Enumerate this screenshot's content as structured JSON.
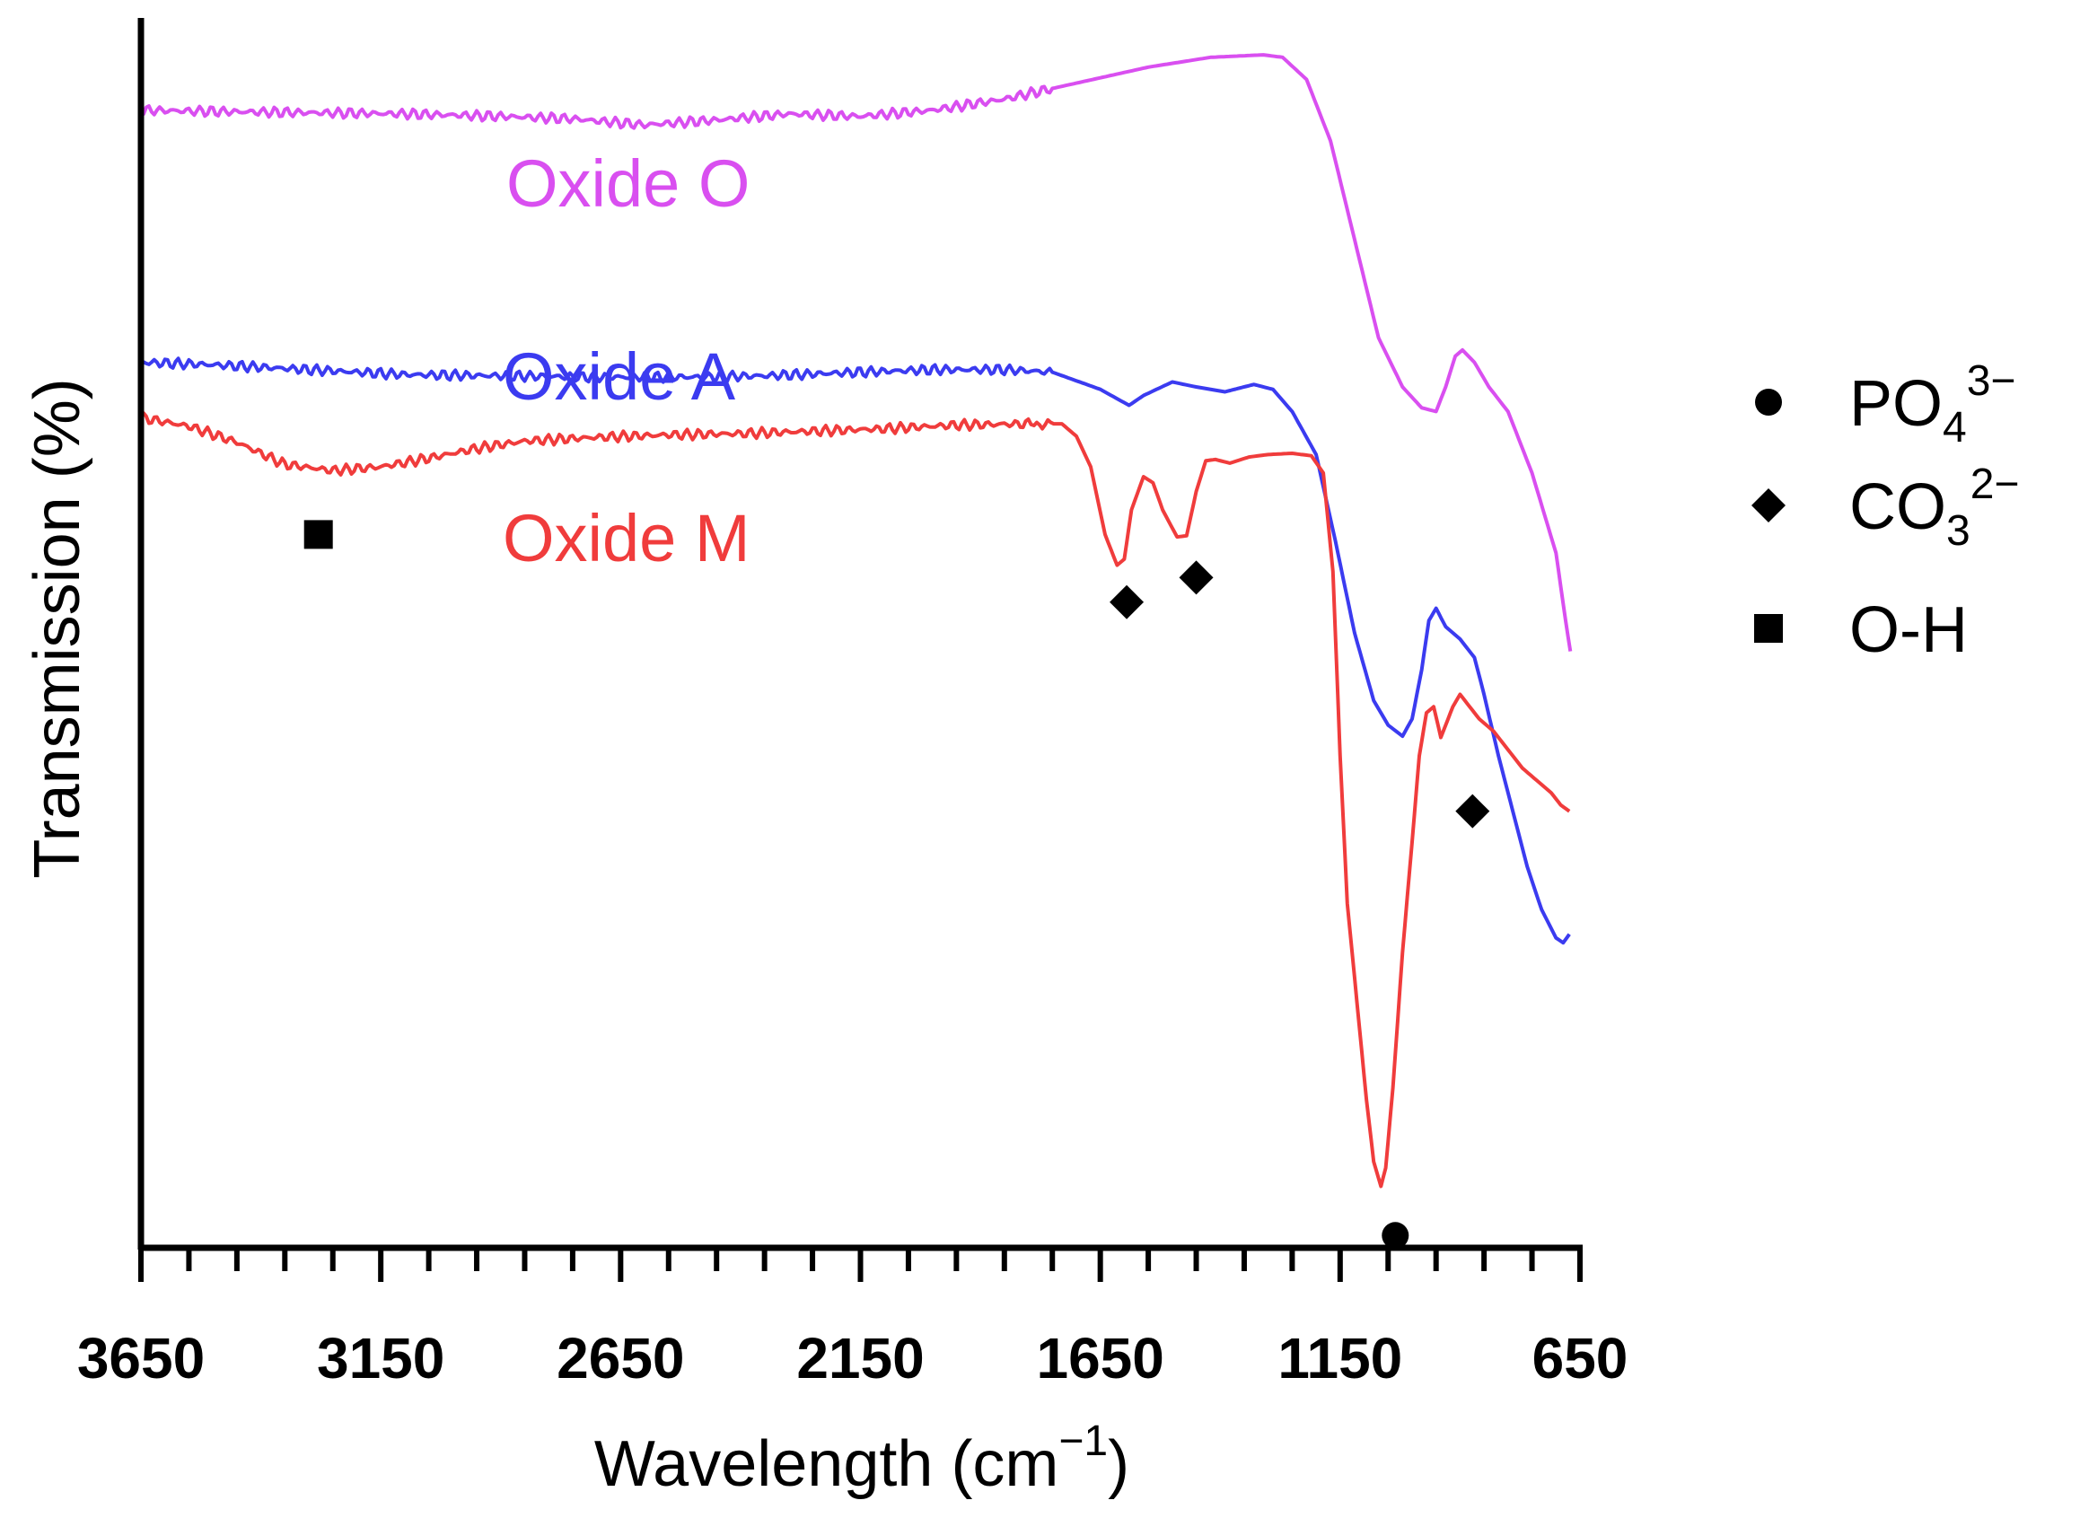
{
  "chart_data": {
    "type": "line",
    "xlabel": "Wavelength (cm",
    "xlabel_sup": "−1",
    "xlabel_tail": ")",
    "ylabel": "Transmission (%)",
    "x_reversed": true,
    "xlim": [
      3650,
      650
    ],
    "ylim": [
      0,
      100
    ],
    "x_ticks": [
      3650,
      3150,
      2650,
      2150,
      1650,
      1150,
      650
    ],
    "x_minor_step": 100,
    "y_ticks_shown": false,
    "series": [
      {
        "name": "Oxide O",
        "color": "#d94ff0",
        "points": [
          [
            3650,
            92.5
          ],
          [
            3500,
            92.4
          ],
          [
            3300,
            92.3
          ],
          [
            3100,
            92.2
          ],
          [
            2900,
            92.0
          ],
          [
            2750,
            91.8
          ],
          [
            2600,
            91.3
          ],
          [
            2450,
            91.7
          ],
          [
            2300,
            92.2
          ],
          [
            2150,
            92.0
          ],
          [
            2000,
            92.5
          ],
          [
            1850,
            93.4
          ],
          [
            1700,
            94.7
          ],
          [
            1550,
            96.0
          ],
          [
            1420,
            96.8
          ],
          [
            1310,
            97.0
          ],
          [
            1270,
            96.8
          ],
          [
            1220,
            95.0
          ],
          [
            1170,
            90.0
          ],
          [
            1120,
            82.0
          ],
          [
            1070,
            74.0
          ],
          [
            1020,
            70.0
          ],
          [
            980,
            68.3
          ],
          [
            950,
            68.0
          ],
          [
            930,
            70.0
          ],
          [
            910,
            72.5
          ],
          [
            895,
            73.0
          ],
          [
            870,
            72.0
          ],
          [
            840,
            70.0
          ],
          [
            800,
            68.0
          ],
          [
            750,
            63.0
          ],
          [
            700,
            56.5
          ],
          [
            680,
            51.0
          ],
          [
            670,
            48.5
          ]
        ]
      },
      {
        "name": "Oxide A",
        "color": "#3b3bf0",
        "points": [
          [
            3650,
            72.0
          ],
          [
            3500,
            71.8
          ],
          [
            3300,
            71.4
          ],
          [
            3100,
            71.0
          ],
          [
            2900,
            70.9
          ],
          [
            2700,
            70.8
          ],
          [
            2500,
            70.8
          ],
          [
            2350,
            70.9
          ],
          [
            2150,
            71.2
          ],
          [
            2000,
            71.4
          ],
          [
            1850,
            71.4
          ],
          [
            1750,
            71.2
          ],
          [
            1650,
            69.8
          ],
          [
            1590,
            68.5
          ],
          [
            1560,
            69.3
          ],
          [
            1500,
            70.4
          ],
          [
            1450,
            70.0
          ],
          [
            1390,
            69.6
          ],
          [
            1330,
            70.2
          ],
          [
            1290,
            69.8
          ],
          [
            1250,
            68.0
          ],
          [
            1200,
            64.5
          ],
          [
            1160,
            57.5
          ],
          [
            1120,
            50.0
          ],
          [
            1080,
            44.5
          ],
          [
            1050,
            42.5
          ],
          [
            1020,
            41.6
          ],
          [
            1000,
            43.0
          ],
          [
            980,
            47.0
          ],
          [
            965,
            51.0
          ],
          [
            950,
            52.0
          ],
          [
            930,
            50.5
          ],
          [
            900,
            49.5
          ],
          [
            870,
            48.0
          ],
          [
            850,
            45.0
          ],
          [
            820,
            40.0
          ],
          [
            790,
            35.5
          ],
          [
            760,
            31.0
          ],
          [
            730,
            27.5
          ],
          [
            700,
            25.2
          ],
          [
            685,
            24.8
          ],
          [
            672,
            25.5
          ]
        ]
      },
      {
        "name": "Oxide M",
        "color": "#f03c3c",
        "points": [
          [
            3650,
            67.5
          ],
          [
            3550,
            66.8
          ],
          [
            3450,
            65.5
          ],
          [
            3350,
            63.7
          ],
          [
            3250,
            63.2
          ],
          [
            3150,
            63.5
          ],
          [
            3050,
            64.2
          ],
          [
            2950,
            65.0
          ],
          [
            2850,
            65.6
          ],
          [
            2700,
            65.9
          ],
          [
            2550,
            66.1
          ],
          [
            2400,
            66.2
          ],
          [
            2250,
            66.4
          ],
          [
            2100,
            66.6
          ],
          [
            1950,
            66.9
          ],
          [
            1800,
            67.0
          ],
          [
            1730,
            67.0
          ],
          [
            1700,
            66.0
          ],
          [
            1670,
            63.5
          ],
          [
            1640,
            58.0
          ],
          [
            1615,
            55.5
          ],
          [
            1600,
            56.0
          ],
          [
            1585,
            60.0
          ],
          [
            1560,
            62.7
          ],
          [
            1540,
            62.2
          ],
          [
            1520,
            60.0
          ],
          [
            1490,
            57.8
          ],
          [
            1470,
            57.9
          ],
          [
            1450,
            61.5
          ],
          [
            1430,
            64.0
          ],
          [
            1410,
            64.1
          ],
          [
            1380,
            63.8
          ],
          [
            1340,
            64.3
          ],
          [
            1300,
            64.5
          ],
          [
            1250,
            64.6
          ],
          [
            1210,
            64.4
          ],
          [
            1185,
            63.0
          ],
          [
            1165,
            55.0
          ],
          [
            1150,
            40.0
          ],
          [
            1135,
            28.0
          ],
          [
            1115,
            20.0
          ],
          [
            1095,
            12.0
          ],
          [
            1080,
            7.0
          ],
          [
            1065,
            5.0
          ],
          [
            1055,
            6.5
          ],
          [
            1040,
            13.0
          ],
          [
            1020,
            24.0
          ],
          [
            1000,
            33.0
          ],
          [
            985,
            40.0
          ],
          [
            970,
            43.5
          ],
          [
            955,
            44.0
          ],
          [
            940,
            41.5
          ],
          [
            930,
            42.5
          ],
          [
            915,
            44.0
          ],
          [
            900,
            45.0
          ],
          [
            880,
            44.0
          ],
          [
            860,
            43.0
          ],
          [
            830,
            42.0
          ],
          [
            800,
            40.5
          ],
          [
            770,
            39.0
          ],
          [
            740,
            38.0
          ],
          [
            710,
            37.0
          ],
          [
            690,
            36.0
          ],
          [
            672,
            35.5
          ]
        ]
      }
    ],
    "series_labels": [
      {
        "text": "Oxide O",
        "color": "#d94ff0"
      },
      {
        "text": "Oxide  A",
        "color": "#3b3bf0"
      },
      {
        "text": "Oxide M",
        "color": "#f03c3c"
      }
    ],
    "markers": [
      {
        "shape": "square",
        "x": 3280,
        "y": 58.0
      },
      {
        "shape": "diamond",
        "x": 1595,
        "y": 52.5
      },
      {
        "shape": "diamond",
        "x": 1450,
        "y": 54.5
      },
      {
        "shape": "diamond",
        "x": 874,
        "y": 35.5
      },
      {
        "shape": "circle",
        "x": 1035,
        "y": 1.0
      }
    ],
    "legend": {
      "position": "right",
      "entries": [
        {
          "shape": "circle",
          "label": "PO",
          "sub": "4",
          "sup": "3−"
        },
        {
          "shape": "diamond",
          "label": "CO",
          "sub": "3",
          "sup": "2−"
        },
        {
          "shape": "square",
          "label": "O-H",
          "sub": "",
          "sup": ""
        }
      ]
    }
  }
}
